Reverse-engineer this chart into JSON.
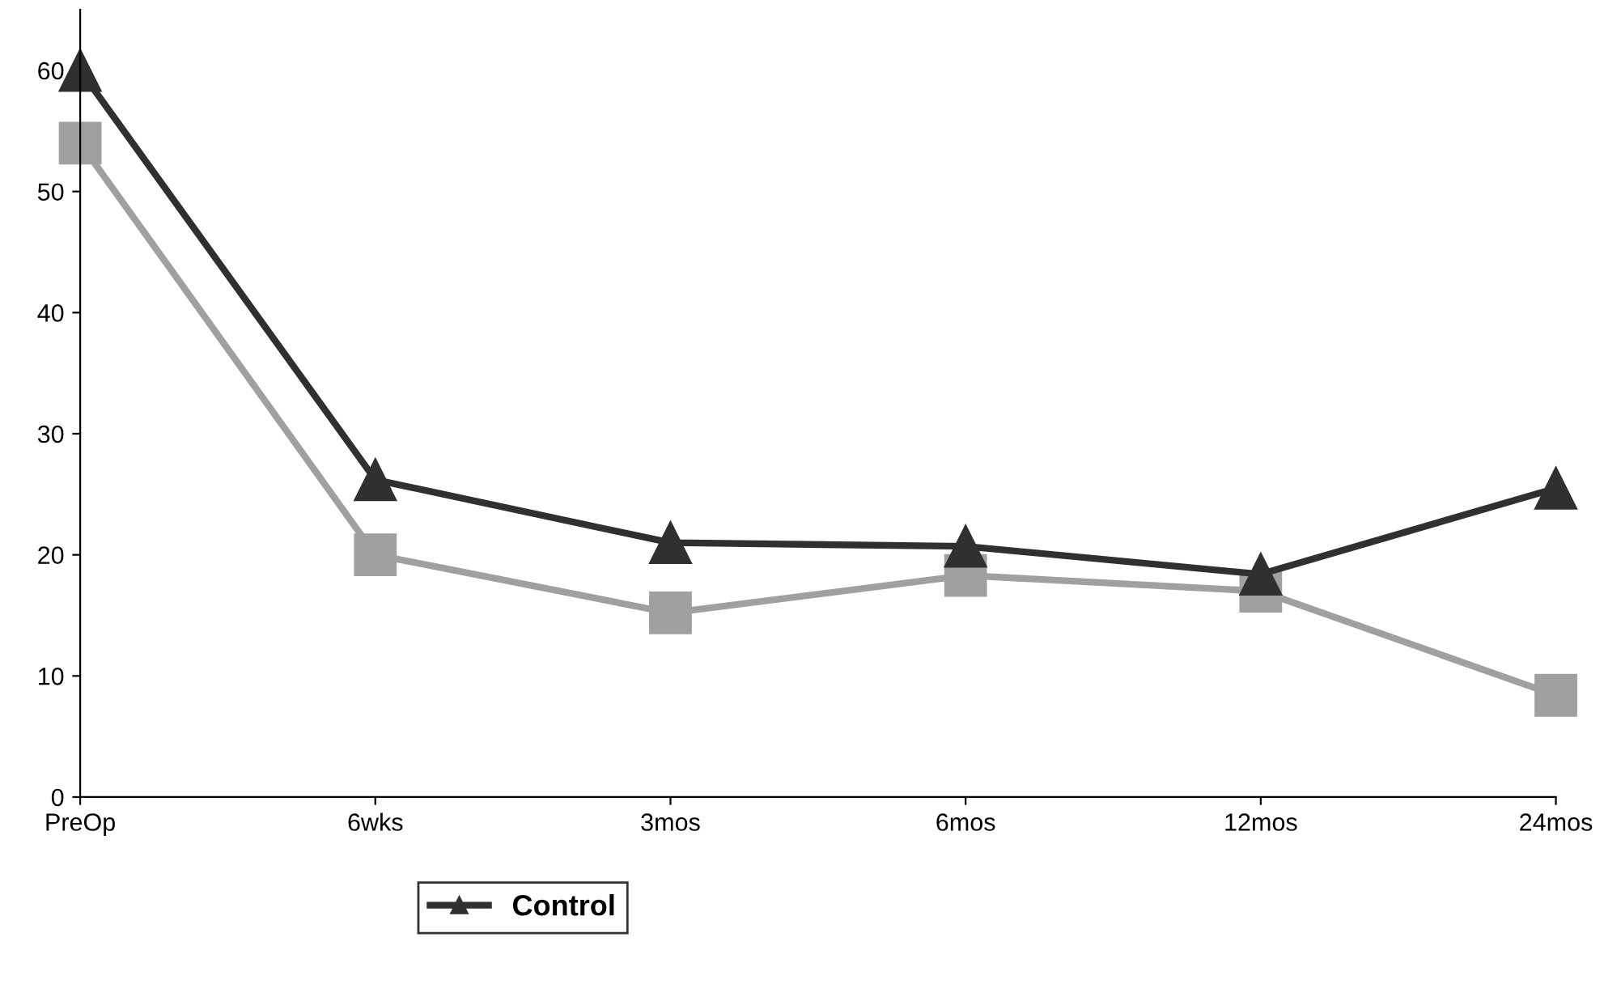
{
  "chart_data": {
    "type": "line",
    "categories": [
      "PreOp",
      "6wks",
      "3mos",
      "6mos",
      "12mos",
      "24mos"
    ],
    "series": [
      {
        "color": "#a0a0a0",
        "marker": "square",
        "values": [
          54,
          20,
          15.2,
          18.3,
          17,
          8.4
        ]
      },
      {
        "name": "Control",
        "color": "#303030",
        "marker": "triangle",
        "values": [
          60,
          26.2,
          21,
          20.7,
          18.4,
          25.5
        ]
      }
    ],
    "ylim": [
      0,
      65
    ],
    "yticks": [
      0,
      10,
      20,
      30,
      40,
      50,
      60
    ],
    "grid": false,
    "legend": "bottom",
    "line_style": "solid"
  }
}
